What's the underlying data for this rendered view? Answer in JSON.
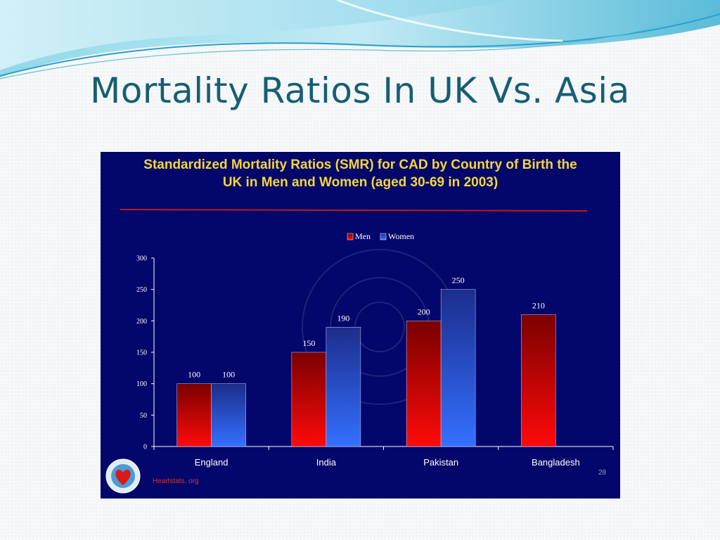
{
  "slide": {
    "title": "Mortality Ratios In UK Vs. Asia"
  },
  "chart_data": {
    "type": "bar",
    "title_line1": "Standardized Mortality Ratios (SMR) for CAD by Country of  Birth the",
    "title_line2": "UK in Men and Women (aged 30-69 in 2003)",
    "categories": [
      "England",
      "India",
      "Pakistan",
      "Bangladesh"
    ],
    "series": [
      {
        "name": "Men",
        "values": [
          100,
          150,
          200,
          210
        ]
      },
      {
        "name": "Women",
        "values": [
          100,
          190,
          250,
          null
        ]
      }
    ],
    "ylim": [
      0,
      300
    ],
    "yticks": [
      0,
      50,
      100,
      150,
      200,
      250,
      300
    ],
    "legend_position": "top-center",
    "grid": false,
    "colors": {
      "background": "#03066a",
      "title": "#f3d63a",
      "men_top": "#7a0000",
      "men_bottom": "#ff0a0a",
      "women_top": "#1c2d8c",
      "women_bottom": "#3470ff",
      "divider": "#c01818"
    }
  },
  "footer": {
    "credit": "Heartstats. org",
    "page_number": "28"
  }
}
